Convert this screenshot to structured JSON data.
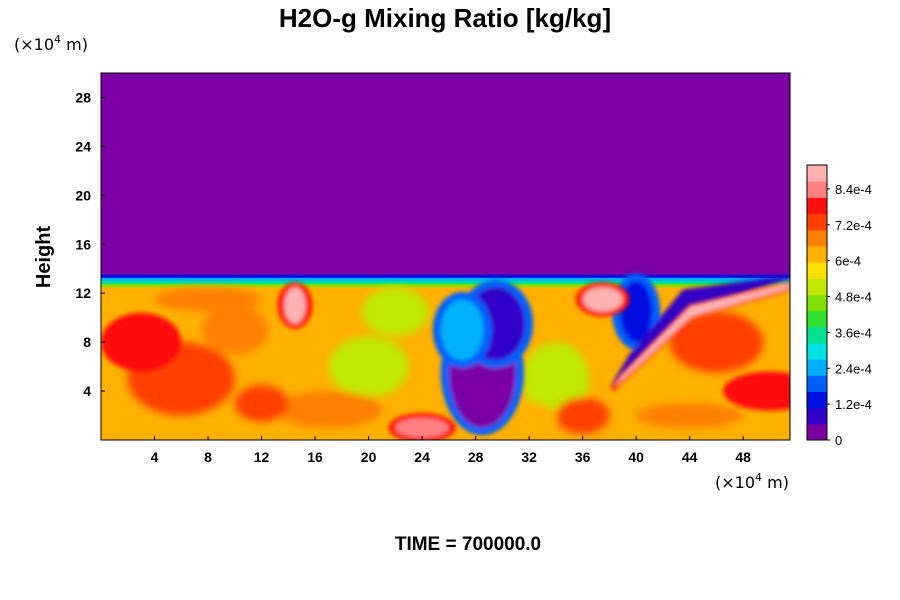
{
  "chart_data": {
    "type": "heatmap",
    "title": "H2O-g Mixing Ratio [kg/kg]",
    "ylabel": "Height",
    "x_unit_label": "(×10",
    "x_unit_exp": "4",
    "x_unit_tail": " m)",
    "y_unit_label": "(×10",
    "y_unit_exp": "4",
    "y_unit_tail": " m)",
    "time_label": "TIME = 700000.0",
    "xlim": [
      0,
      51.5
    ],
    "ylim": [
      0,
      30
    ],
    "x_ticks": [
      4,
      8,
      12,
      16,
      20,
      24,
      28,
      32,
      36,
      40,
      44,
      48
    ],
    "y_ticks": [
      4,
      8,
      12,
      16,
      20,
      24,
      28
    ],
    "x_tick_labels": [
      "4",
      "8",
      "12",
      "16",
      "20",
      "24",
      "28",
      "32",
      "36",
      "40",
      "44",
      "48"
    ],
    "y_tick_labels": [
      "4",
      "8",
      "12",
      "16",
      "20",
      "24",
      "28"
    ],
    "colorbar": {
      "range": [
        0,
        0.00092
      ],
      "tick_values": [
        0,
        0.00012,
        0.00024,
        0.00036,
        0.00048,
        0.0006,
        0.00072,
        0.00084
      ],
      "tick_labels": [
        "0",
        "1.2e-4",
        "2.4e-4",
        "3.6e-4",
        "4.8e-4",
        "6e-4",
        "7.2e-4",
        "8.4e-4"
      ],
      "colors": [
        "#7a00a6",
        "#3000c8",
        "#0010e0",
        "#0060ff",
        "#00b0ff",
        "#00e0e0",
        "#00e090",
        "#30e030",
        "#80e000",
        "#c0e800",
        "#ffe000",
        "#ffb000",
        "#ff8000",
        "#ff4000",
        "#ff1010",
        "#ff8080",
        "#ffb0b0"
      ]
    },
    "field": {
      "description_free": true,
      "background_value": 0.0,
      "moist_layer_top": 13.5,
      "moist_base_value": 0.00062,
      "dry_intrusions": [
        {
          "x": 28.5,
          "y": 5.5,
          "rx": 2.5,
          "ry": 4.5,
          "value": 5e-05
        },
        {
          "x": 29.5,
          "y": 9.5,
          "rx": 2.2,
          "ry": 3.0,
          "value": 8e-05
        },
        {
          "x": 27.0,
          "y": 9.0,
          "rx": 1.6,
          "ry": 2.5,
          "value": 0.00025
        },
        {
          "x": 40.0,
          "y": 10.5,
          "rx": 1.2,
          "ry": 2.5,
          "value": 0.00015
        }
      ],
      "moist_maxima": [
        {
          "x": 24.0,
          "y": 1.0,
          "rx": 2.0,
          "ry": 0.8,
          "value": 0.00086
        },
        {
          "x": 50.0,
          "y": 4.0,
          "rx": 3.0,
          "ry": 1.2,
          "value": 0.0008
        },
        {
          "x": 14.5,
          "y": 11.0,
          "rx": 0.8,
          "ry": 1.5,
          "value": 0.00088
        },
        {
          "x": 37.5,
          "y": 11.5,
          "rx": 1.5,
          "ry": 1.0,
          "value": 0.00088
        },
        {
          "x": 3.0,
          "y": 8.0,
          "rx": 2.5,
          "ry": 2.0,
          "value": 0.00076
        }
      ]
    }
  }
}
